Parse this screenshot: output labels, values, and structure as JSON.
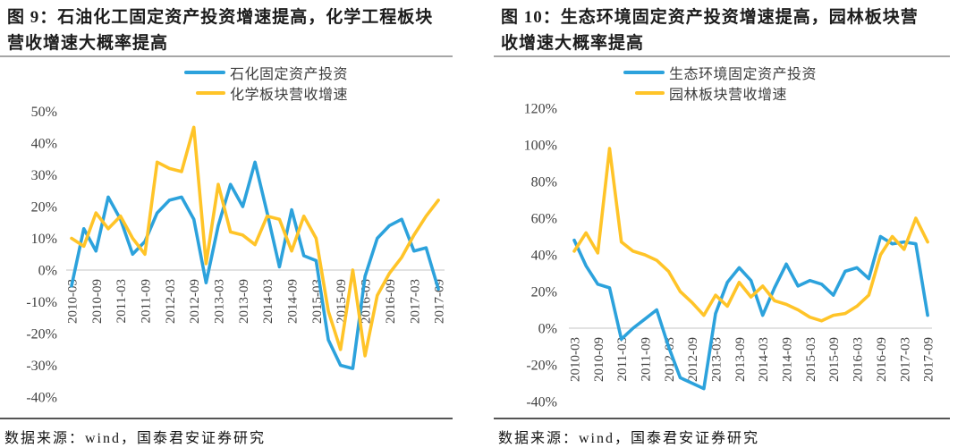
{
  "colors": {
    "blue_series": "#2CA2DC",
    "yellow_series": "#FFC428",
    "zero_gridline": "#d9d9d9",
    "axis_text": "#404040",
    "title_text": "#1c1c1c",
    "title_rule": "#a6a6a6",
    "source_rule": "#555555"
  },
  "chart_data": [
    {
      "type": "line",
      "title_prefix": "图 9：",
      "title_text": "石油化工固定资产投资增速提高，化学工程板块营收增速大概率提高",
      "source": "数据来源：wind，国泰君安证券研究",
      "legend_position": "top-center",
      "grid": "zero-line-only",
      "ylim": [
        -40,
        50
      ],
      "ytick_values": [
        50,
        40,
        30,
        20,
        10,
        0,
        -10,
        -20,
        -30,
        -40
      ],
      "ytick_labels": [
        "50%",
        "40%",
        "30%",
        "20%",
        "10%",
        "0%",
        "-10%",
        "-20%",
        "-30%",
        "-40%"
      ],
      "x": [
        "2010-03",
        "2010-06",
        "2010-09",
        "2010-12",
        "2011-03",
        "2011-06",
        "2011-09",
        "2011-12",
        "2012-03",
        "2012-06",
        "2012-09",
        "2012-12",
        "2013-03",
        "2013-06",
        "2013-09",
        "2013-12",
        "2014-03",
        "2014-06",
        "2014-09",
        "2014-12",
        "2015-03",
        "2015-06",
        "2015-09",
        "2015-12",
        "2016-03",
        "2016-06",
        "2016-09",
        "2016-12",
        "2017-03",
        "2017-06",
        "2017-09"
      ],
      "xtick_labels": [
        "2010-03",
        "2010-09",
        "2011-03",
        "2011-09",
        "2012-03",
        "2012-09",
        "2013-03",
        "2013-09",
        "2014-03",
        "2014-09",
        "2015-03",
        "2015-09",
        "2016-03",
        "2016-09",
        "2017-03",
        "2017-09"
      ],
      "series": [
        {
          "name": "石化固定资产投资",
          "color": "#2CA2DC",
          "values": [
            -5,
            13,
            6,
            23,
            16,
            5,
            9,
            18,
            22,
            23,
            16,
            -4,
            14,
            27,
            20,
            34,
            18,
            1,
            19,
            4.5,
            3,
            -22,
            -30,
            -31,
            -2,
            10,
            14,
            16,
            6,
            7,
            -6
          ]
        },
        {
          "name": "化学板块营收增速",
          "color": "#FFC428",
          "values": [
            10,
            7.5,
            18,
            13,
            17,
            10,
            5,
            34,
            32,
            31,
            45,
            2,
            27,
            12,
            11,
            8,
            17,
            16,
            6,
            17,
            10,
            -13,
            -25,
            0,
            -27,
            -8,
            -1,
            4,
            11,
            17,
            22
          ]
        }
      ]
    },
    {
      "type": "line",
      "title_prefix": "图 10：",
      "title_text": "生态环境固定资产投资增速提高，园林板块营收增速大概率提高",
      "source": "数据来源：wind，国泰君安证券研究",
      "legend_position": "top-center",
      "grid": "zero-line-only",
      "ylim": [
        -40,
        120
      ],
      "ytick_values": [
        120,
        100,
        80,
        60,
        40,
        20,
        0,
        -20,
        -40
      ],
      "ytick_labels": [
        "120%",
        "100%",
        "80%",
        "60%",
        "40%",
        "20%",
        "0%",
        "-20%",
        "-40%"
      ],
      "x": [
        "2010-03",
        "2010-06",
        "2010-09",
        "2010-12",
        "2011-03",
        "2011-06",
        "2011-09",
        "2011-12",
        "2012-03",
        "2012-06",
        "2012-09",
        "2012-12",
        "2013-03",
        "2013-06",
        "2013-09",
        "2013-12",
        "2014-03",
        "2014-06",
        "2014-09",
        "2014-12",
        "2015-03",
        "2015-06",
        "2015-09",
        "2015-12",
        "2016-03",
        "2016-06",
        "2016-09",
        "2016-12",
        "2017-03",
        "2017-06",
        "2017-09"
      ],
      "xtick_labels": [
        "2010-03",
        "2010-09",
        "2011-03",
        "2011-09",
        "2012-03",
        "2012-09",
        "2013-03",
        "2013-09",
        "2014-03",
        "2014-09",
        "2015-03",
        "2015-09",
        "2016-03",
        "2016-09",
        "2017-03",
        "2017-09"
      ],
      "series": [
        {
          "name": "生态环境固定资产投资",
          "color": "#2CA2DC",
          "values": [
            48,
            34,
            24,
            22,
            -6,
            0,
            5,
            10,
            -10,
            -27,
            -30,
            -33,
            8,
            25,
            33,
            26,
            7,
            22,
            35,
            23,
            26,
            24,
            18,
            31,
            33,
            27,
            50,
            46,
            47,
            46,
            7
          ]
        },
        {
          "name": "园林板块营收增速",
          "color": "#FFC428",
          "values": [
            42,
            52,
            41,
            98,
            47,
            42,
            40,
            37,
            31,
            20,
            14,
            7,
            18,
            12,
            25,
            17,
            23,
            15,
            13,
            10,
            6,
            4,
            7,
            8,
            12,
            18,
            40,
            50,
            43,
            60,
            47
          ]
        }
      ]
    }
  ]
}
